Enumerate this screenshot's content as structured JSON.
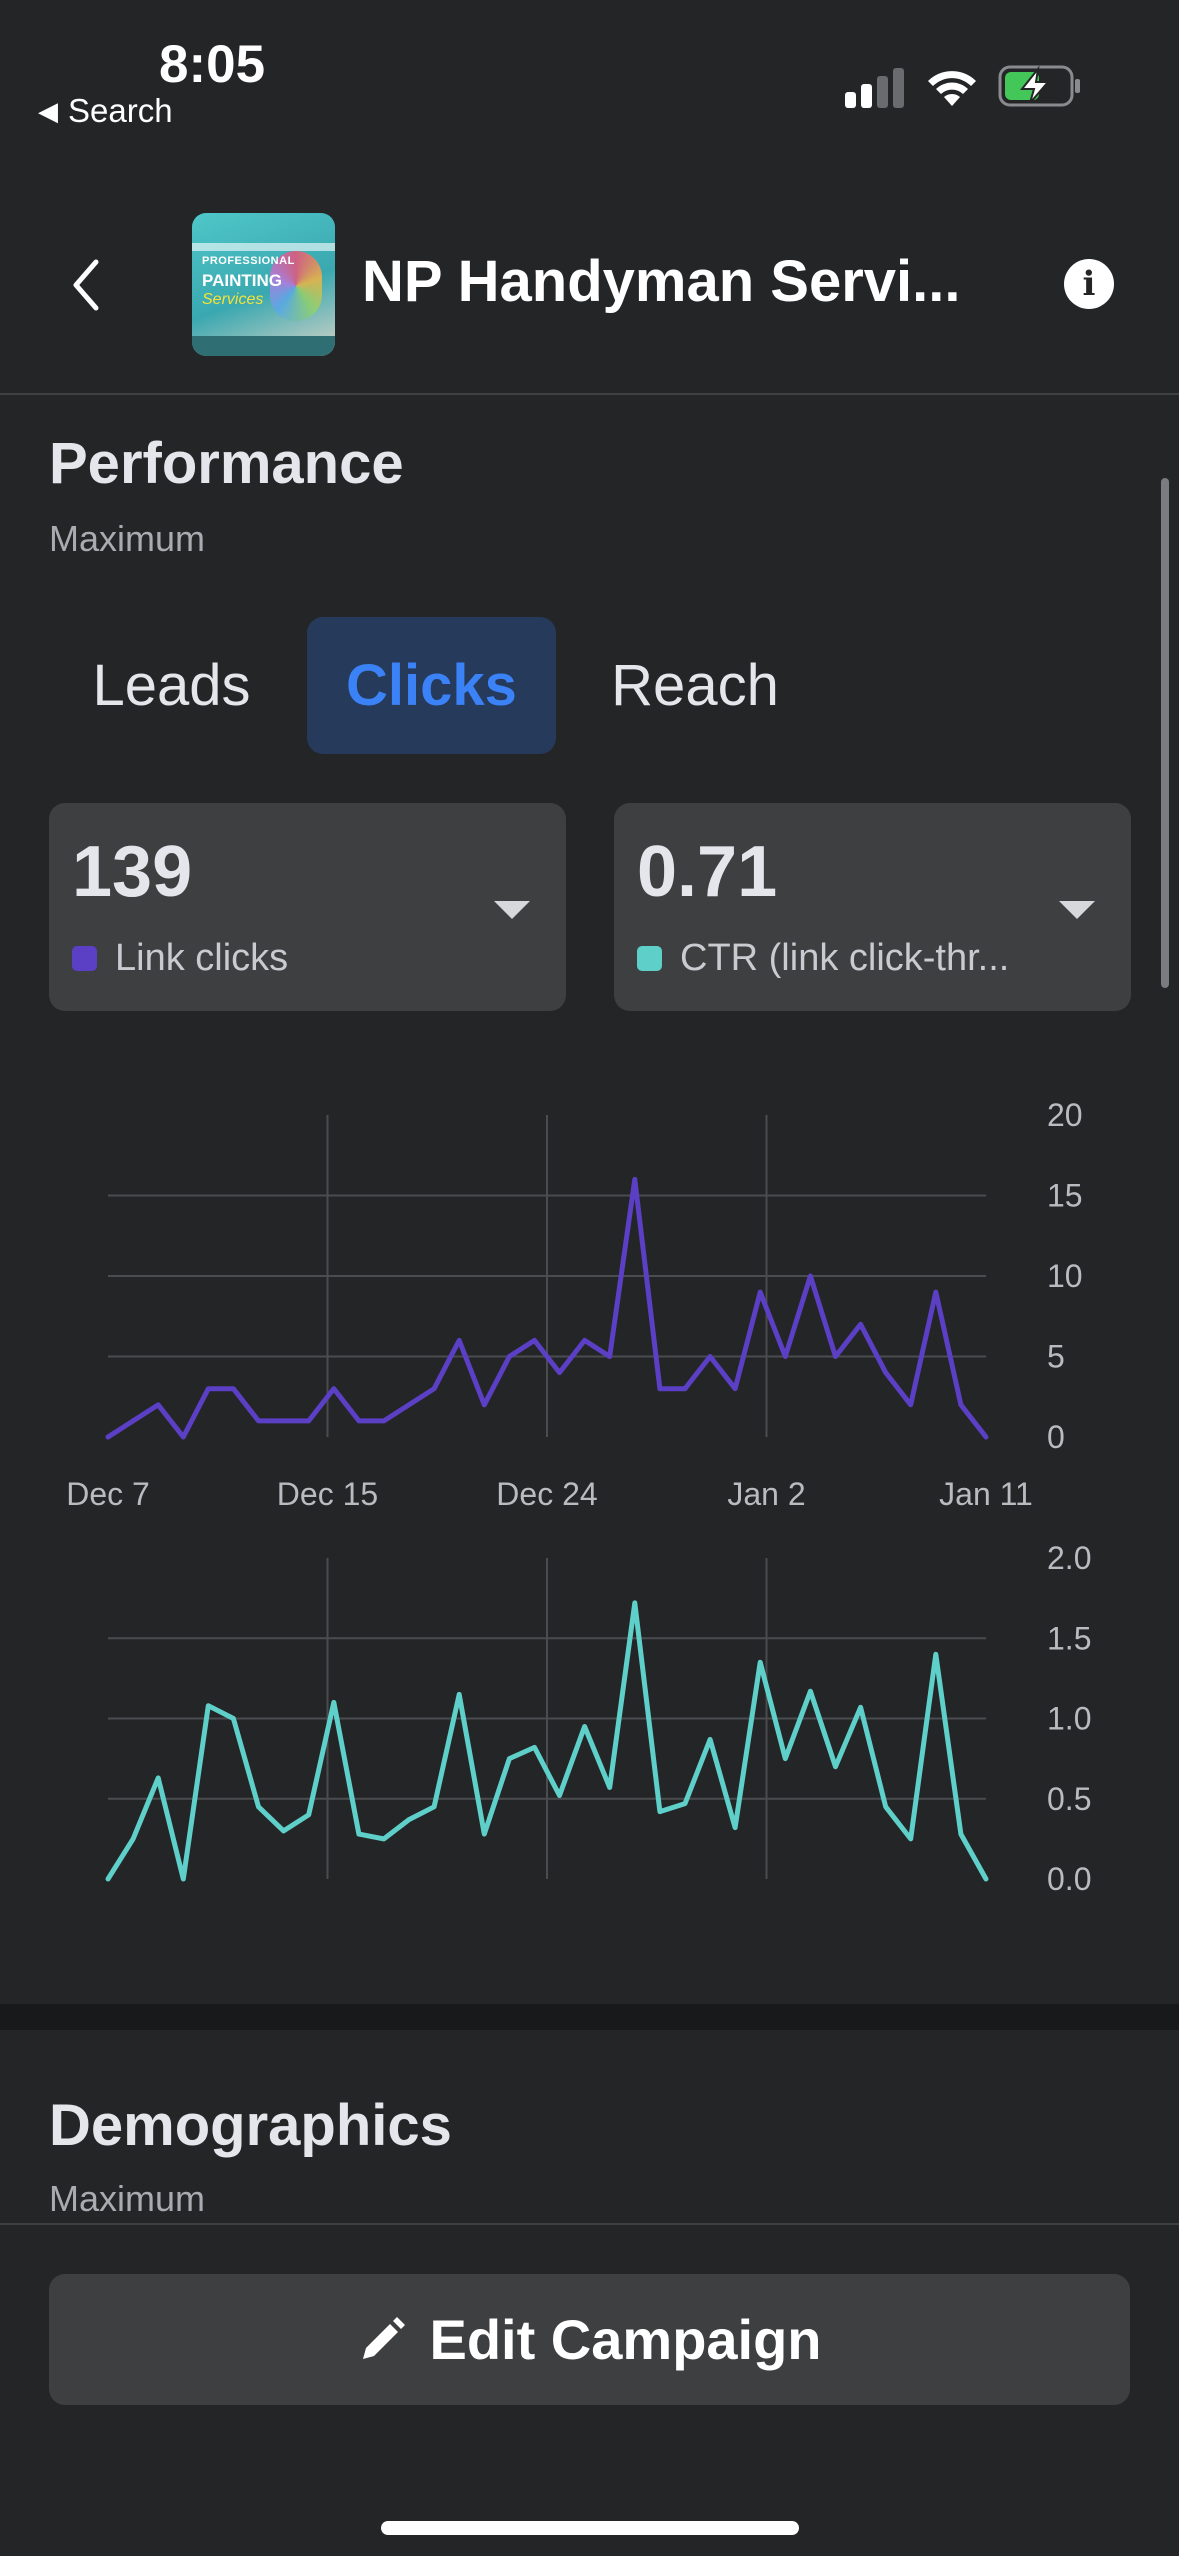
{
  "status_bar": {
    "time": "8:05",
    "back_label": "Search"
  },
  "header": {
    "title": "NP Handyman Servi...",
    "thumbnail": {
      "line1": "PROFESSIONAL",
      "line2": "PAINTING",
      "line3": "Services"
    }
  },
  "performance": {
    "title": "Performance",
    "subtitle": "Maximum",
    "tabs": [
      {
        "label": "Leads"
      },
      {
        "label": "Clicks",
        "active": true
      },
      {
        "label": "Reach"
      }
    ],
    "metrics": [
      {
        "value": "139",
        "label": "Link clicks",
        "color": "#5b3fc4"
      },
      {
        "value": "0.71",
        "label": "CTR (link click-thr...",
        "color": "#5fcfc9"
      }
    ]
  },
  "chart_data": [
    {
      "type": "line",
      "series": [
        {
          "name": "Link clicks",
          "color": "#5b3fc4",
          "values": [
            0,
            1,
            2,
            0,
            3,
            3,
            1,
            1,
            1,
            3,
            1,
            1,
            2,
            3,
            6,
            2,
            5,
            6,
            4,
            6,
            5,
            16,
            3,
            3,
            5,
            3,
            9,
            5,
            10,
            5,
            7,
            4,
            2,
            9,
            2,
            0
          ]
        }
      ],
      "x_tick_labels": [
        "Dec 7",
        "Dec 15",
        "Dec 24",
        "Jan 2",
        "Jan 11"
      ],
      "y_tick_labels": [
        "20",
        "15",
        "10",
        "5",
        "0"
      ],
      "ylim": [
        0,
        20
      ],
      "grid": true
    },
    {
      "type": "line",
      "series": [
        {
          "name": "CTR (link click-thr...",
          "color": "#5fcfc9",
          "values": [
            0.0,
            0.25,
            0.63,
            0.0,
            1.08,
            1.0,
            0.45,
            0.3,
            0.4,
            1.1,
            0.28,
            0.25,
            0.37,
            0.45,
            1.15,
            0.28,
            0.75,
            0.82,
            0.52,
            0.95,
            0.57,
            1.72,
            0.42,
            0.47,
            0.87,
            0.32,
            1.35,
            0.75,
            1.17,
            0.7,
            1.07,
            0.45,
            0.25,
            1.4,
            0.28,
            0.0
          ]
        }
      ],
      "y_tick_labels": [
        "2.0",
        "1.5",
        "1.0",
        "0.5",
        "0.0"
      ],
      "ylim": [
        0,
        2.0
      ],
      "grid": true
    }
  ],
  "demographics": {
    "title": "Demographics",
    "subtitle": "Maximum"
  },
  "footer": {
    "edit_label": "Edit Campaign"
  }
}
